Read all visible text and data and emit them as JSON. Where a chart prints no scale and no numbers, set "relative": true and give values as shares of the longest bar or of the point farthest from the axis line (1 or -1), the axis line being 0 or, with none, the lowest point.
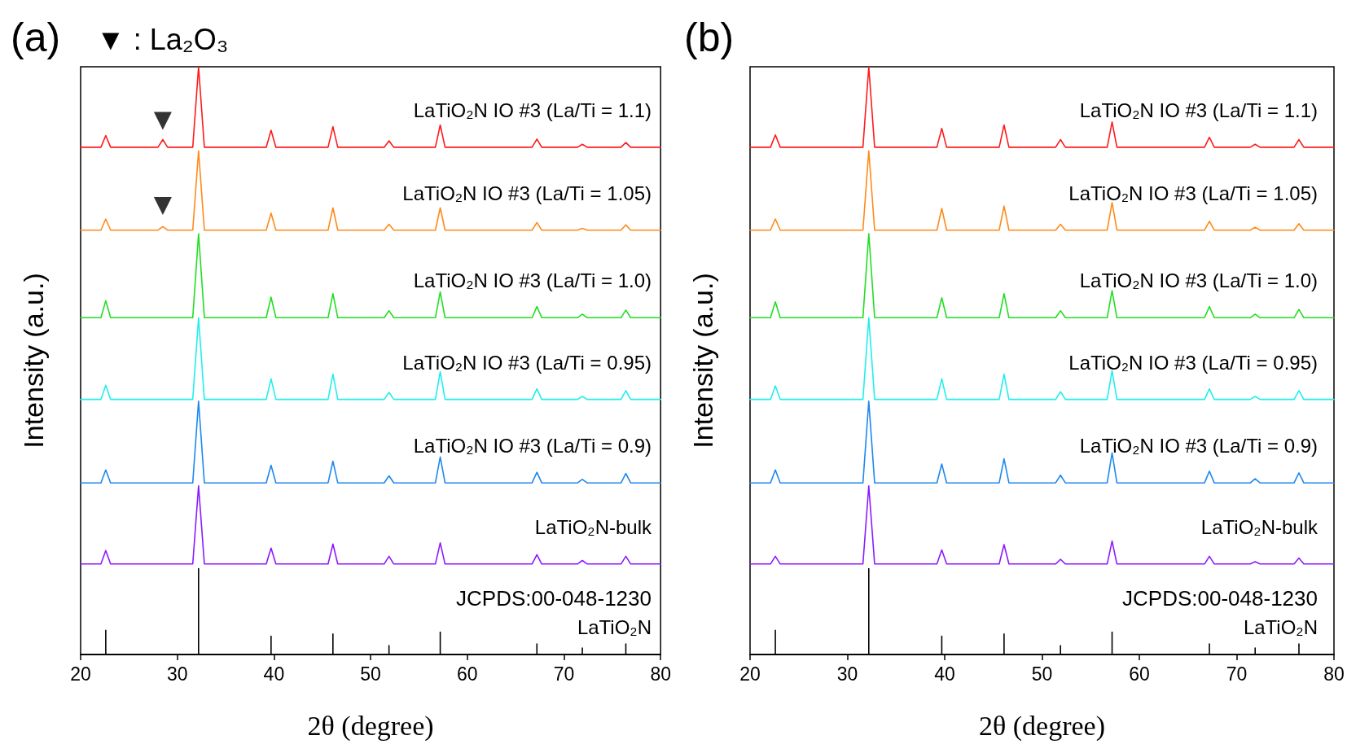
{
  "chart_data": [
    {
      "type": "line",
      "title": "(a)",
      "subtitle": "▼ : La₂O₃",
      "xlabel": "2θ (degree)",
      "ylabel": "Intensity (a.u.)",
      "relative": true,
      "tick_labels": "x",
      "marker": "none",
      "xlim": [
        20,
        80
      ],
      "xticks": [
        20,
        30,
        40,
        50,
        60,
        70,
        80
      ],
      "x": [
        20,
        22.1,
        22.6,
        23.1,
        28.0,
        28.5,
        29.0,
        31.6,
        32.2,
        32.8,
        39.2,
        39.7,
        40.2,
        45.6,
        46.1,
        46.6,
        51.4,
        51.9,
        52.4,
        56.7,
        57.2,
        57.7,
        66.7,
        67.2,
        67.7,
        71.4,
        71.9,
        72.4,
        75.9,
        76.4,
        76.9,
        80
      ],
      "series": [
        {
          "name": "LaTiO₂N IO #3 (La/Ti = 1.1)",
          "color": "#ff1a1a",
          "values": [
            0.863,
            0.863,
            0.883,
            0.863,
            0.863,
            0.876,
            0.863,
            0.863,
            1,
            0.863,
            0.863,
            0.892,
            0.863,
            0.863,
            0.898,
            0.863,
            0.863,
            0.874,
            0.863,
            0.863,
            0.901,
            0.863,
            0.863,
            0.877,
            0.863,
            0.863,
            0.868,
            0.863,
            0.863,
            0.871,
            0.863,
            0.863
          ]
        },
        {
          "name": "LaTiO₂N IO #3 (La/Ti = 1.05)",
          "color": "#ff8a1a",
          "values": [
            0.722,
            0.722,
            0.741,
            0.722,
            0.722,
            0.728,
            0.722,
            0.722,
            0.857,
            0.722,
            0.722,
            0.751,
            0.722,
            0.722,
            0.76,
            0.722,
            0.722,
            0.732,
            0.722,
            0.722,
            0.76,
            0.722,
            0.722,
            0.735,
            0.722,
            0.722,
            0.725,
            0.722,
            0.722,
            0.731,
            0.722,
            0.722
          ]
        },
        {
          "name": "LaTiO₂N IO #3 (La/Ti = 1.0)",
          "color": "#22dd22",
          "values": [
            0.573,
            0.573,
            0.602,
            0.573,
            0.573,
            0.573,
            0.573,
            0.573,
            0.716,
            0.573,
            0.573,
            0.608,
            0.573,
            0.573,
            0.614,
            0.573,
            0.573,
            0.585,
            0.573,
            0.573,
            0.617,
            0.573,
            0.573,
            0.592,
            0.573,
            0.573,
            0.579,
            0.573,
            0.573,
            0.586,
            0.573,
            0.573
          ]
        },
        {
          "name": "LaTiO₂N IO #3 (La/Ti = 0.95)",
          "color": "#22eeee",
          "values": [
            0.434,
            0.434,
            0.458,
            0.434,
            0.434,
            0.434,
            0.434,
            0.434,
            0.573,
            0.434,
            0.434,
            0.469,
            0.434,
            0.434,
            0.477,
            0.434,
            0.434,
            0.446,
            0.434,
            0.434,
            0.481,
            0.434,
            0.434,
            0.452,
            0.434,
            0.434,
            0.439,
            0.434,
            0.434,
            0.449,
            0.434,
            0.434
          ]
        },
        {
          "name": "LaTiO₂N IO #3 (La/Ti = 0.9)",
          "color": "#1e88f0",
          "values": [
            0.292,
            0.292,
            0.314,
            0.292,
            0.292,
            0.292,
            0.292,
            0.292,
            0.431,
            0.292,
            0.292,
            0.322,
            0.292,
            0.292,
            0.329,
            0.292,
            0.292,
            0.304,
            0.292,
            0.292,
            0.336,
            0.292,
            0.292,
            0.31,
            0.292,
            0.292,
            0.298,
            0.292,
            0.292,
            0.308,
            0.292,
            0.292
          ]
        },
        {
          "name": "LaTiO₂N-bulk",
          "color": "#8c1aff",
          "values": [
            0.154,
            0.154,
            0.177,
            0.154,
            0.154,
            0.154,
            0.154,
            0.154,
            0.287,
            0.154,
            0.154,
            0.181,
            0.154,
            0.154,
            0.188,
            0.154,
            0.154,
            0.167,
            0.154,
            0.154,
            0.19,
            0.154,
            0.154,
            0.17,
            0.154,
            0.154,
            0.16,
            0.154,
            0.154,
            0.167,
            0.154,
            0.154
          ]
        },
        {
          "name": "LaTiO₂N",
          "color": "#000000",
          "x": [
            20,
            22.6,
            22.6,
            22.6,
            32.2,
            32.2,
            32.2,
            39.7,
            39.7,
            39.7,
            46.1,
            46.1,
            46.1,
            51.9,
            51.9,
            51.9,
            57.2,
            57.2,
            57.2,
            67.2,
            67.2,
            67.2,
            71.9,
            71.9,
            71.9,
            76.4,
            76.4,
            76.4,
            80
          ],
          "values": [
            0,
            0,
            0.041,
            0,
            0,
            0.146,
            0,
            0,
            0.031,
            0,
            0,
            0.035,
            0,
            0,
            0.015,
            0,
            0,
            0.038,
            0,
            0,
            0.018,
            0,
            0,
            0.011,
            0,
            0,
            0.018,
            0,
            0
          ]
        },
        {
          "type": "scatter",
          "marker": "triangle",
          "color": "#000000",
          "x": [
            28.5,
            28.5
          ],
          "values": [
            0.908,
            0.763
          ]
        }
      ],
      "annotations": [
        "JCPDS:00-048-1230"
      ]
    },
    {
      "type": "line",
      "title": "(b)",
      "xlabel": "2θ (degree)",
      "ylabel": "Intensity (a.u.)",
      "relative": true,
      "tick_labels": "x",
      "marker": "none",
      "xlim": [
        20,
        80
      ],
      "xticks": [
        20,
        30,
        40,
        50,
        60,
        70,
        80
      ],
      "x": [
        20,
        22.1,
        22.6,
        23.1,
        31.6,
        32.2,
        32.8,
        39.2,
        39.7,
        40.2,
        45.6,
        46.1,
        46.6,
        51.4,
        51.9,
        52.4,
        56.7,
        57.2,
        57.7,
        66.7,
        67.2,
        67.7,
        71.4,
        71.9,
        72.4,
        75.9,
        76.4,
        76.9,
        80
      ],
      "series": [
        {
          "name": "LaTiO₂N IO #3 (La/Ti = 1.1)",
          "color": "#ff1a1a",
          "values": [
            0.863,
            0.863,
            0.884,
            0.863,
            0.863,
            1,
            0.863,
            0.863,
            0.895,
            0.863,
            0.863,
            0.901,
            0.863,
            0.863,
            0.876,
            0.863,
            0.863,
            0.906,
            0.863,
            0.863,
            0.88,
            0.863,
            0.863,
            0.868,
            0.863,
            0.863,
            0.876,
            0.863,
            0.863
          ]
        },
        {
          "name": "LaTiO₂N IO #3 (La/Ti = 1.05)",
          "color": "#ff8a1a",
          "values": [
            0.722,
            0.722,
            0.741,
            0.722,
            0.722,
            0.857,
            0.722,
            0.722,
            0.759,
            0.722,
            0.722,
            0.763,
            0.722,
            0.722,
            0.732,
            0.722,
            0.722,
            0.769,
            0.722,
            0.722,
            0.737,
            0.722,
            0.722,
            0.727,
            0.722,
            0.722,
            0.733,
            0.722,
            0.722
          ]
        },
        {
          "name": "LaTiO₂N IO #3 (La/Ti = 1.0)",
          "color": "#22dd22",
          "values": [
            0.573,
            0.573,
            0.6,
            0.573,
            0.573,
            0.716,
            0.573,
            0.573,
            0.607,
            0.573,
            0.573,
            0.614,
            0.573,
            0.573,
            0.585,
            0.573,
            0.573,
            0.619,
            0.573,
            0.573,
            0.592,
            0.573,
            0.573,
            0.579,
            0.573,
            0.573,
            0.587,
            0.573,
            0.573
          ]
        },
        {
          "name": "LaTiO₂N IO #3 (La/Ti = 0.95)",
          "color": "#22eeee",
          "values": [
            0.434,
            0.434,
            0.457,
            0.434,
            0.434,
            0.573,
            0.434,
            0.434,
            0.469,
            0.434,
            0.434,
            0.477,
            0.434,
            0.434,
            0.447,
            0.434,
            0.434,
            0.483,
            0.434,
            0.434,
            0.452,
            0.434,
            0.434,
            0.439,
            0.434,
            0.434,
            0.449,
            0.434,
            0.434
          ]
        },
        {
          "name": "LaTiO₂N IO #3 (La/Ti = 0.9)",
          "color": "#1e88f0",
          "values": [
            0.292,
            0.292,
            0.314,
            0.292,
            0.292,
            0.431,
            0.292,
            0.292,
            0.324,
            0.292,
            0.292,
            0.333,
            0.292,
            0.292,
            0.305,
            0.292,
            0.292,
            0.343,
            0.292,
            0.292,
            0.312,
            0.292,
            0.292,
            0.299,
            0.292,
            0.292,
            0.309,
            0.292,
            0.292
          ]
        },
        {
          "name": "LaTiO₂N-bulk",
          "color": "#8c1aff",
          "values": [
            0.154,
            0.154,
            0.167,
            0.154,
            0.154,
            0.287,
            0.154,
            0.154,
            0.178,
            0.154,
            0.154,
            0.187,
            0.154,
            0.154,
            0.162,
            0.154,
            0.154,
            0.193,
            0.154,
            0.154,
            0.167,
            0.154,
            0.154,
            0.158,
            0.154,
            0.154,
            0.164,
            0.154,
            0.154
          ]
        },
        {
          "name": "LaTiO₂N",
          "color": "#000000",
          "x": [
            20,
            22.6,
            22.6,
            22.6,
            32.2,
            32.2,
            32.2,
            39.7,
            39.7,
            39.7,
            46.1,
            46.1,
            46.1,
            51.9,
            51.9,
            51.9,
            57.2,
            57.2,
            57.2,
            67.2,
            67.2,
            67.2,
            71.9,
            71.9,
            71.9,
            76.4,
            76.4,
            76.4,
            80
          ],
          "values": [
            0,
            0,
            0.041,
            0,
            0,
            0.146,
            0,
            0,
            0.031,
            0,
            0,
            0.035,
            0,
            0,
            0.015,
            0,
            0,
            0.038,
            0,
            0,
            0.018,
            0,
            0,
            0.011,
            0,
            0,
            0.018,
            0,
            0
          ]
        }
      ],
      "annotations": [
        "JCPDS:00-048-1230"
      ]
    }
  ]
}
